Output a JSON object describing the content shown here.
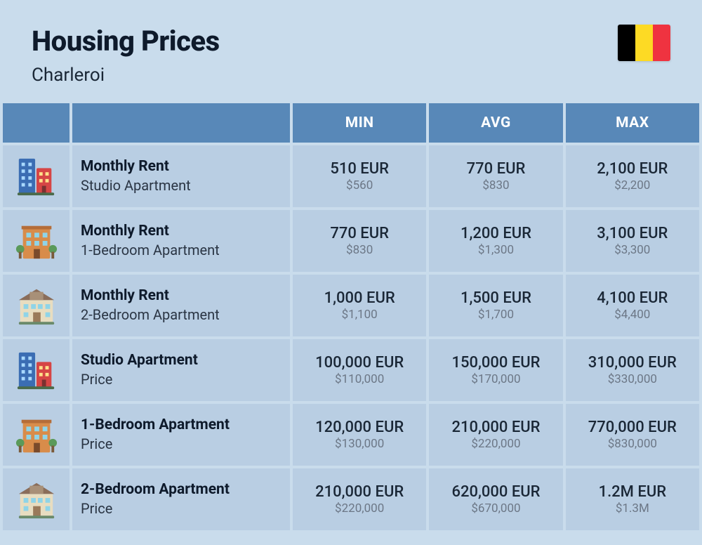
{
  "header": {
    "title": "Housing Prices",
    "subtitle": "Charleroi",
    "flag_colors": [
      "#000000",
      "#fdda24",
      "#ef3340"
    ]
  },
  "columns": {
    "min": "MIN",
    "avg": "AVG",
    "max": "MAX"
  },
  "icons": {
    "studio": {
      "type": "tall-buildings"
    },
    "one_bed": {
      "type": "brick-building"
    },
    "two_bed": {
      "type": "house"
    }
  },
  "rows": [
    {
      "icon": "studio",
      "title": "Monthly Rent",
      "sub": "Studio Apartment",
      "min_eur": "510 EUR",
      "min_usd": "$560",
      "avg_eur": "770 EUR",
      "avg_usd": "$830",
      "max_eur": "2,100 EUR",
      "max_usd": "$2,200"
    },
    {
      "icon": "one_bed",
      "title": "Monthly Rent",
      "sub": "1-Bedroom Apartment",
      "min_eur": "770 EUR",
      "min_usd": "$830",
      "avg_eur": "1,200 EUR",
      "avg_usd": "$1,300",
      "max_eur": "3,100 EUR",
      "max_usd": "$3,300"
    },
    {
      "icon": "two_bed",
      "title": "Monthly Rent",
      "sub": "2-Bedroom Apartment",
      "min_eur": "1,000 EUR",
      "min_usd": "$1,100",
      "avg_eur": "1,500 EUR",
      "avg_usd": "$1,700",
      "max_eur": "4,100 EUR",
      "max_usd": "$4,400"
    },
    {
      "icon": "studio",
      "title": "Studio Apartment",
      "sub": "Price",
      "min_eur": "100,000 EUR",
      "min_usd": "$110,000",
      "avg_eur": "150,000 EUR",
      "avg_usd": "$170,000",
      "max_eur": "310,000 EUR",
      "max_usd": "$330,000"
    },
    {
      "icon": "one_bed",
      "title": "1-Bedroom Apartment",
      "sub": "Price",
      "min_eur": "120,000 EUR",
      "min_usd": "$130,000",
      "avg_eur": "210,000 EUR",
      "avg_usd": "$220,000",
      "max_eur": "770,000 EUR",
      "max_usd": "$830,000"
    },
    {
      "icon": "two_bed",
      "title": "2-Bedroom Apartment",
      "sub": "Price",
      "min_eur": "210,000 EUR",
      "min_usd": "$220,000",
      "avg_eur": "620,000 EUR",
      "avg_usd": "$670,000",
      "max_eur": "1.2M EUR",
      "max_usd": "$1.3M"
    }
  ],
  "styling": {
    "background_color": "#c9dcec",
    "header_bg": "#5888b8",
    "header_text": "#ffffff",
    "cell_bg": "#b9cee3",
    "title_color": "#0e1a2b",
    "usd_color": "#6c7786"
  }
}
